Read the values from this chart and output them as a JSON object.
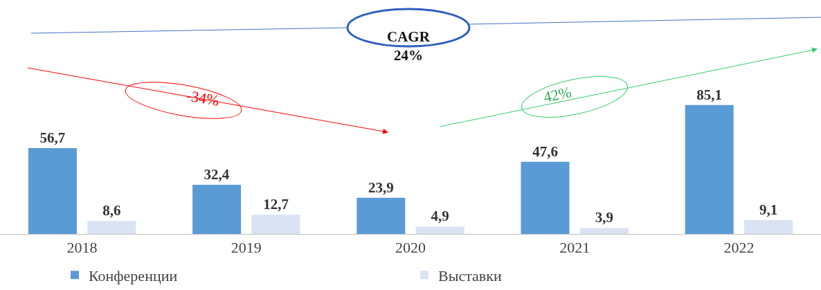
{
  "chart_data": {
    "type": "bar",
    "categories": [
      "2018",
      "2019",
      "2020",
      "2021",
      "2022"
    ],
    "series": [
      {
        "name": "Конференции",
        "color": "#5b9bd5",
        "values": [
          56.7,
          32.4,
          23.9,
          47.6,
          85.1
        ],
        "value_labels": [
          "56,7",
          "32,4",
          "23,9",
          "47,6",
          "85,1"
        ]
      },
      {
        "name": "Выставки",
        "color": "#dae3f3",
        "values": [
          8.6,
          12.7,
          4.9,
          3.9,
          9.1
        ],
        "value_labels": [
          "8,6",
          "12,7",
          "4,9",
          "3,9",
          "9,1"
        ]
      }
    ],
    "legend": "bottom",
    "annotations": [
      "CAGR\n24%",
      "-34%",
      "42%"
    ]
  }
}
